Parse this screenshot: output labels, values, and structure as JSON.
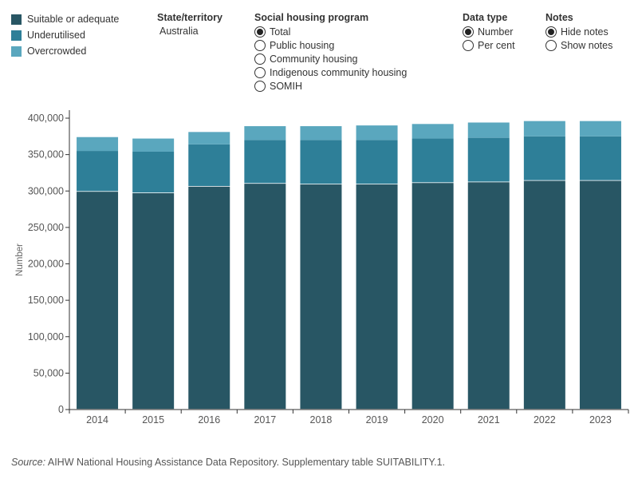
{
  "legend": {
    "items": [
      {
        "label": "Suitable or adequate",
        "color": "#285664"
      },
      {
        "label": "Underutilised",
        "color": "#2e7f98"
      },
      {
        "label": "Overcrowded",
        "color": "#5aa7be"
      }
    ]
  },
  "controls": {
    "state": {
      "title": "State/territory",
      "value": "Australia"
    },
    "program": {
      "title": "Social housing program",
      "options": [
        {
          "label": "Total",
          "checked": true
        },
        {
          "label": "Public housing",
          "checked": false
        },
        {
          "label": "Community housing",
          "checked": false
        },
        {
          "label": "Indigenous community housing",
          "checked": false
        },
        {
          "label": "SOMIH",
          "checked": false
        }
      ]
    },
    "data_type": {
      "title": "Data type",
      "options": [
        {
          "label": "Number",
          "checked": true
        },
        {
          "label": "Per cent",
          "checked": false
        }
      ]
    },
    "notes": {
      "title": "Notes",
      "options": [
        {
          "label": "Hide notes",
          "checked": true
        },
        {
          "label": "Show notes",
          "checked": false
        }
      ]
    }
  },
  "chart_data": {
    "type": "bar",
    "stacked": true,
    "categories": [
      "2014",
      "2015",
      "2016",
      "2017",
      "2018",
      "2019",
      "2020",
      "2021",
      "2022",
      "2023"
    ],
    "series": [
      {
        "name": "Suitable or adequate",
        "color": "#285664",
        "values": [
          299000,
          297000,
          306000,
          310000,
          309000,
          309000,
          311000,
          312000,
          314000,
          314000
        ]
      },
      {
        "name": "Underutilised",
        "color": "#2e7f98",
        "values": [
          56000,
          57000,
          58000,
          60000,
          61000,
          61000,
          61000,
          61000,
          61000,
          61000
        ]
      },
      {
        "name": "Overcrowded",
        "color": "#5aa7be",
        "values": [
          19000,
          18000,
          17000,
          19000,
          19000,
          20000,
          20000,
          21000,
          21000,
          21000
        ]
      }
    ],
    "ylabel": "Number",
    "ylim": [
      0,
      400000
    ],
    "yticks": [
      0,
      50000,
      100000,
      150000,
      200000,
      250000,
      300000,
      350000,
      400000
    ],
    "ytick_labels": [
      "0",
      "50,000",
      "100,000",
      "150,000",
      "200,000",
      "250,000",
      "300,000",
      "350,000",
      "400,000"
    ],
    "grid": false,
    "legend_position": "top-left"
  },
  "source": {
    "prefix": "Source:",
    "text": " AIHW National Housing Assistance Data Repository. Supplementary table SUITABILITY.1."
  }
}
